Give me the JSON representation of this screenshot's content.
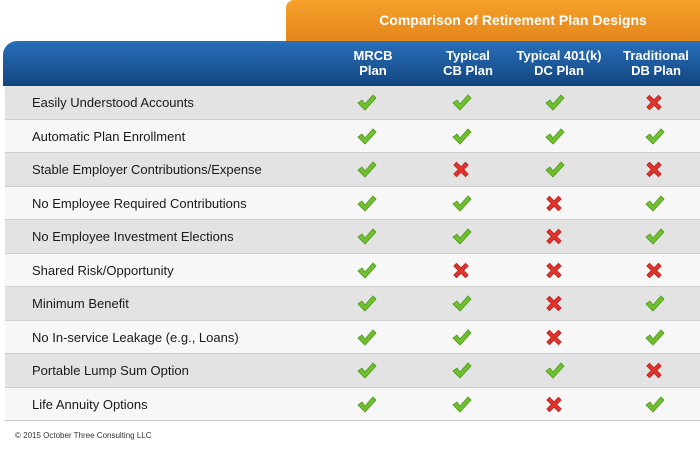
{
  "title": "Comparison of Retirement Plan Designs",
  "columns": [
    {
      "line1": "MRCB",
      "line2": "Plan"
    },
    {
      "line1": "Typical",
      "line2": "CB Plan"
    },
    {
      "line1": "Typical 401(k)",
      "line2": "DC Plan"
    },
    {
      "line1": "Traditional",
      "line2": "DB Plan"
    }
  ],
  "rows": [
    {
      "feature": "Easily Understood Accounts",
      "values": [
        true,
        true,
        true,
        false
      ]
    },
    {
      "feature": "Automatic Plan Enrollment",
      "values": [
        true,
        true,
        true,
        true
      ]
    },
    {
      "feature": "Stable Employer Contributions/Expense",
      "values": [
        true,
        false,
        true,
        false
      ]
    },
    {
      "feature": "No Employee Required Contributions",
      "values": [
        true,
        true,
        false,
        true
      ]
    },
    {
      "feature": "No Employee Investment Elections",
      "values": [
        true,
        true,
        false,
        true
      ]
    },
    {
      "feature": "Shared Risk/Opportunity",
      "values": [
        true,
        false,
        false,
        false
      ]
    },
    {
      "feature": "Minimum Benefit",
      "values": [
        true,
        true,
        false,
        true
      ]
    },
    {
      "feature": "No In-service Leakage (e.g., Loans)",
      "values": [
        true,
        true,
        false,
        true
      ]
    },
    {
      "feature": "Portable Lump Sum Option",
      "values": [
        true,
        true,
        true,
        false
      ]
    },
    {
      "feature": "Life Annuity Options",
      "values": [
        true,
        true,
        false,
        true
      ]
    }
  ],
  "footer": "© 2015 October Three Consulting LLC",
  "colors": {
    "check": "#6fbf2f",
    "cross": "#e0332b",
    "orange": "#f19322",
    "blue": "#1d5a9f"
  }
}
